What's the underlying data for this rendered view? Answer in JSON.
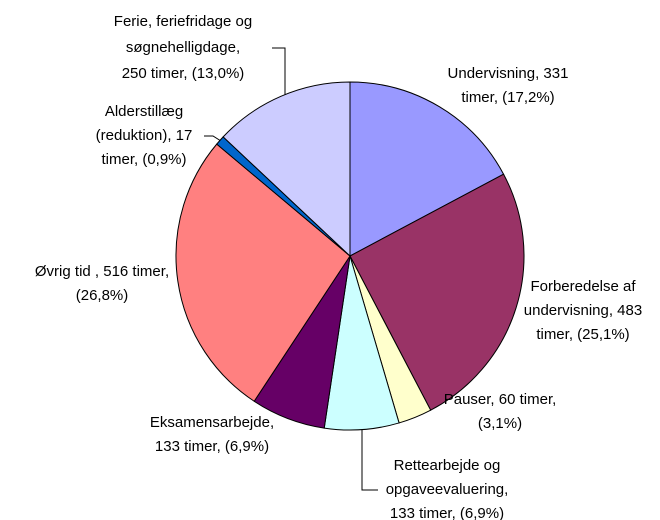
{
  "chart_data": {
    "type": "pie",
    "values": [
      331,
      483,
      60,
      133,
      133,
      516,
      17,
      250
    ],
    "value_labels": [
      [
        "Undervisning, 331",
        "timer, (17,2%)"
      ],
      [
        "Forberedelse af",
        "undervisning, 483",
        "timer, (25,1%)"
      ],
      [
        "Pauser, 60 timer,",
        "(3,1%)"
      ],
      [
        "Rettearbejde og",
        "opgaveevaluering,",
        "133 timer, (6,9%)"
      ],
      [
        "Eksamensarbejde,",
        "133 timer, (6,9%)"
      ],
      [
        "Øvrig tid , 516 timer,",
        "(26,8%)"
      ],
      [
        "Alderstillæg",
        "(reduktion), 17",
        "timer, (0,9%)"
      ],
      [
        "Ferie, feriefridage og",
        "søgnehelligdage,",
        "250 timer, (13,0%)"
      ]
    ],
    "colors": [
      "#9999ff",
      "#993366",
      "#ffffcc",
      "#ccffff",
      "#660066",
      "#ff8080",
      "#0066cc",
      "#ccccff"
    ]
  }
}
